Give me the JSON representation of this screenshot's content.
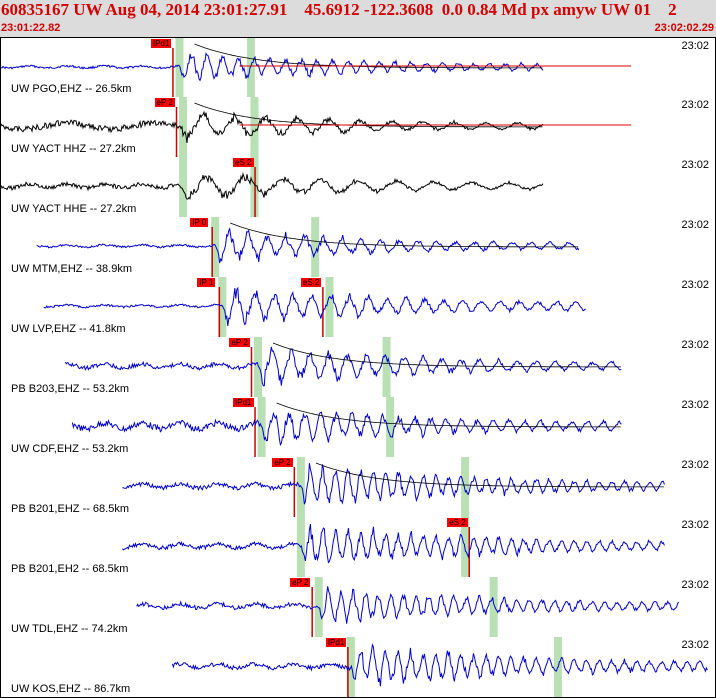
{
  "header": {
    "title": "60835167 UW Aug 04, 2014 23:01:27.91    45.6912 -122.3608  0.0 0.84 Md px amyw UW 01    2",
    "start_time": "23:01:22.82",
    "end_time": "23:02:02.29",
    "background": "#dcdcdc",
    "text_color": "#d40000"
  },
  "channels": [
    {
      "label": "UW PGO,EHZ -- 26.5km",
      "time": "23:02",
      "color": "blue",
      "picks": [
        {
          "text": "IPd1",
          "t": 0.21
        }
      ],
      "green": [
        0.25,
        0.35
      ],
      "onset": 0.25,
      "end": 0.76,
      "pre_amp": 1,
      "amp": 14,
      "period": 5,
      "decay": true,
      "red_line": true
    },
    {
      "label": "UW YACT HHZ -- 27.2km",
      "time": "23:02",
      "color": "black",
      "picks": [
        {
          "text": "eP 2",
          "t": 0.215
        }
      ],
      "green": [
        0.255,
        0.355
      ],
      "onset": 0.25,
      "end": 0.76,
      "pre_amp": 3,
      "amp": 14,
      "period": 10,
      "decay": true,
      "red_line": true
    },
    {
      "label": "UW YACT HHE -- 27.2km",
      "time": "23:02",
      "color": "black",
      "picks": [
        {
          "text": "eS 2",
          "t": 0.325
        }
      ],
      "green": [
        0.255,
        0.355
      ],
      "onset": 0.25,
      "end": 0.76,
      "pre_amp": 2,
      "amp": 14,
      "period": 12,
      "decay": false,
      "red_line": false
    },
    {
      "label": "UW MTM,EHZ -- 38.9km",
      "time": "23:02",
      "color": "blue",
      "picks": [
        {
          "text": "IP 0",
          "t": 0.265
        }
      ],
      "green": [
        0.3,
        0.44
      ],
      "onset": 0.3,
      "end": 0.81,
      "start": 0.05,
      "pre_amp": 1,
      "amp": 15,
      "period": 6,
      "decay": true,
      "red_line": false
    },
    {
      "label": "UW LVP,EHZ -- 41.8km",
      "time": "23:02",
      "color": "blue",
      "picks": [
        {
          "text": "IP 1",
          "t": 0.275
        },
        {
          "text": "eS 2",
          "t": 0.42
        }
      ],
      "green": [
        0.31,
        0.46
      ],
      "onset": 0.31,
      "end": 0.82,
      "start": 0.06,
      "pre_amp": 1,
      "amp": 18,
      "period": 6,
      "decay": false,
      "red_line": false
    },
    {
      "label": "PB B203,EHZ -- 53.2km",
      "time": "23:02",
      "color": "blue",
      "picks": [
        {
          "text": "eP 2",
          "t": 0.32
        }
      ],
      "green": [
        0.36,
        0.54
      ],
      "onset": 0.36,
      "end": 0.87,
      "start": 0.09,
      "pre_amp": 2,
      "amp": 18,
      "period": 6,
      "decay": true,
      "red_line": false
    },
    {
      "label": "UW CDF,EHZ -- 53.2km",
      "time": "23:02",
      "color": "blue",
      "picks": [
        {
          "text": "IPd1",
          "t": 0.325
        }
      ],
      "green": [
        0.365,
        0.545
      ],
      "onset": 0.365,
      "end": 0.87,
      "start": 0.1,
      "pre_amp": 3,
      "amp": 18,
      "period": 5,
      "decay": true,
      "red_line": false
    },
    {
      "label": "PB B201,EHZ -- 68.5km",
      "time": "23:02",
      "color": "blue",
      "picks": [
        {
          "text": "eP 2",
          "t": 0.38
        }
      ],
      "green": [
        0.42,
        0.65
      ],
      "onset": 0.42,
      "end": 0.93,
      "start": 0.17,
      "pre_amp": 2,
      "amp": 20,
      "period": 4,
      "decay": true,
      "red_line": false
    },
    {
      "label": "PB B201,EH2 -- 68.5km",
      "time": "23:02",
      "color": "blue",
      "picks": [
        {
          "text": "eS 2",
          "t": 0.625
        }
      ],
      "green": [
        0.42,
        0.65
      ],
      "onset": 0.42,
      "end": 0.93,
      "start": 0.17,
      "pre_amp": 2,
      "amp": 20,
      "period": 4,
      "decay": false,
      "red_line": false
    },
    {
      "label": "UW TDL,EHZ -- 74.2km",
      "time": "23:02",
      "color": "blue",
      "picks": [
        {
          "text": "eP 2",
          "t": 0.405
        }
      ],
      "green": [
        0.445,
        0.69
      ],
      "onset": 0.445,
      "end": 0.95,
      "start": 0.19,
      "pre_amp": 2,
      "amp": 18,
      "period": 4,
      "decay": false,
      "red_line": false
    },
    {
      "label": "UW KOS,EHZ -- 86.7km",
      "time": "23:02",
      "color": "blue",
      "picks": [
        {
          "text": "IPd1",
          "t": 0.455
        }
      ],
      "green": [
        0.49,
        0.78
      ],
      "onset": 0.49,
      "end": 0.99,
      "start": 0.24,
      "pre_amp": 2,
      "amp": 20,
      "period": 4,
      "decay": false,
      "red_line": false
    }
  ]
}
